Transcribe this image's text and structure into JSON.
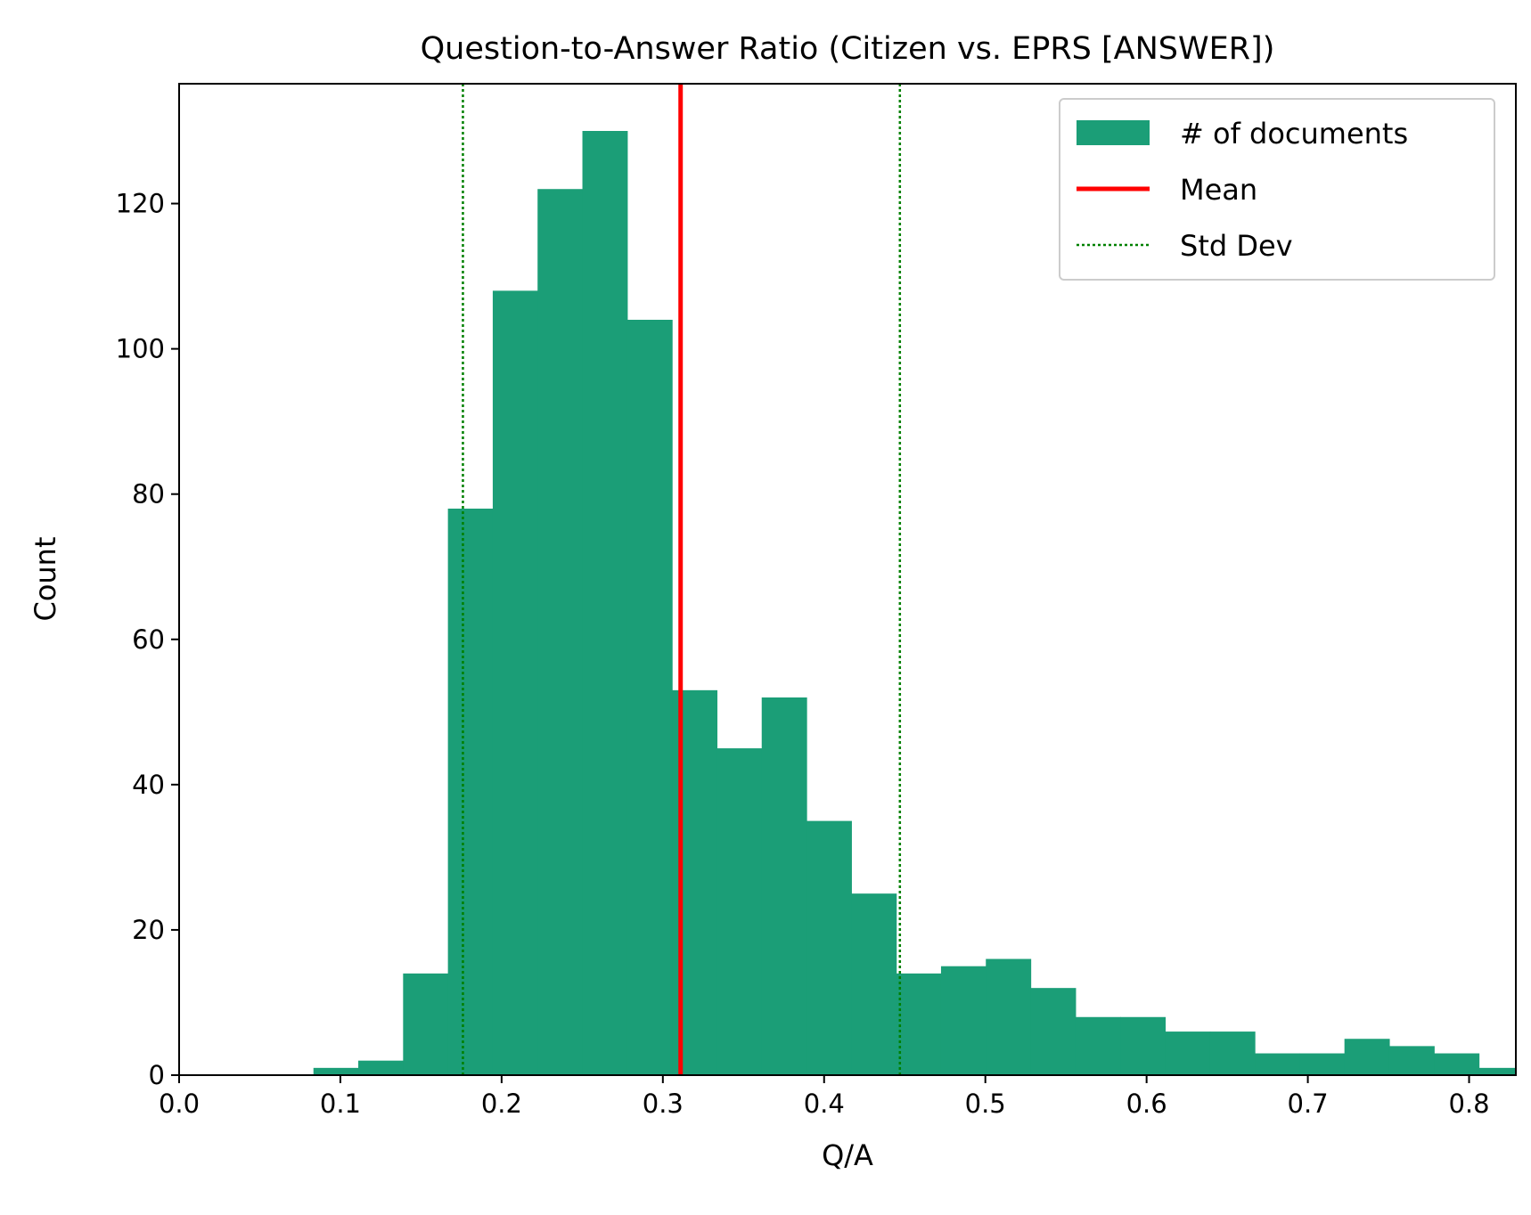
{
  "chart_data": {
    "type": "bar",
    "title": "Question-to-Answer Ratio (Citizen vs. EPRS [ANSWER])",
    "xlabel": "Q/A",
    "ylabel": "Count",
    "xlim": [
      0,
      0.829
    ],
    "ylim": [
      0,
      136.5
    ],
    "xticks": [
      "0.0",
      "0.1",
      "0.2",
      "0.3",
      "0.4",
      "0.5",
      "0.6",
      "0.7",
      "0.8"
    ],
    "xtick_values": [
      0.0,
      0.1,
      0.2,
      0.3,
      0.4,
      0.5,
      0.6,
      0.7,
      0.8
    ],
    "yticks": [
      "0",
      "20",
      "40",
      "60",
      "80",
      "100",
      "120"
    ],
    "ytick_values": [
      0,
      20,
      40,
      60,
      80,
      100,
      120
    ],
    "grid": false,
    "legend_position": "top-right",
    "bin_width": 0.0278,
    "bin_starts": [
      0.0833,
      0.1111,
      0.1389,
      0.1667,
      0.1945,
      0.2223,
      0.2501,
      0.2779,
      0.3057,
      0.3335,
      0.3613,
      0.3891,
      0.4169,
      0.4447,
      0.4725,
      0.5003,
      0.5281,
      0.5559,
      0.5837,
      0.6115,
      0.6393,
      0.6671,
      0.6949,
      0.7227,
      0.7505,
      0.7783,
      0.8061
    ],
    "values": [
      1,
      2,
      14,
      78,
      108,
      122,
      130,
      104,
      53,
      45,
      52,
      35,
      25,
      14,
      15,
      16,
      12,
      8,
      8,
      6,
      6,
      3,
      3,
      5,
      4,
      3,
      1
    ],
    "mean": 0.311,
    "std_lines": [
      0.176,
      0.447
    ],
    "legend": {
      "bars": "# of documents",
      "mean": "Mean",
      "std": "Std Dev"
    },
    "colors": {
      "bars": "#1b9e77",
      "mean": "#ff0000",
      "std": "#008000"
    }
  }
}
